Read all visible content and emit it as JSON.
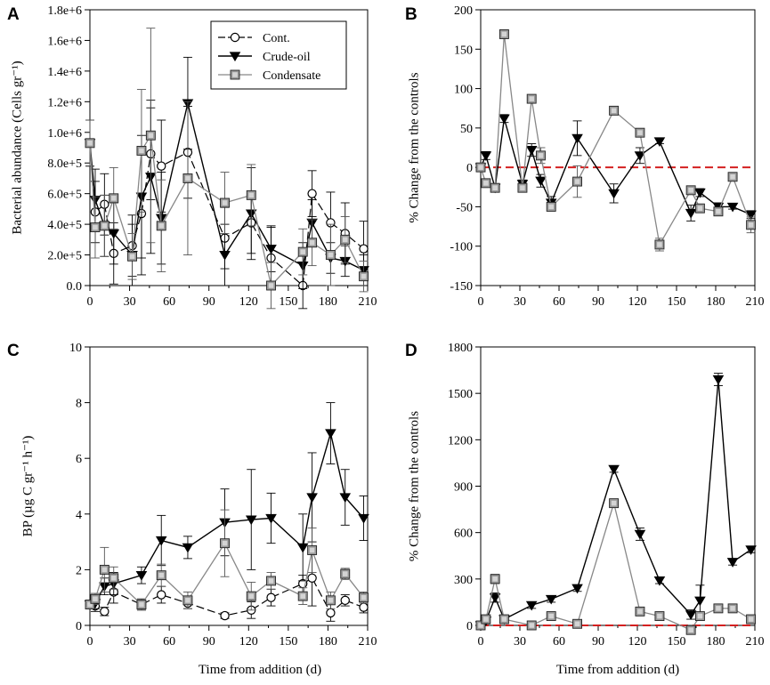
{
  "figure": {
    "xlabel_common": "Time from addition (d)"
  },
  "chart_data": [
    {
      "panel": "A",
      "type": "line",
      "ylabel": "Bacterial abundance (Cells gr⁻¹)",
      "xlim": [
        0,
        210
      ],
      "ylim": [
        0,
        1800000
      ],
      "xticks": [
        0,
        30,
        60,
        90,
        120,
        150,
        180,
        210
      ],
      "xtick_labels": [
        "0",
        "30",
        "60",
        "90",
        "120",
        "150",
        "180",
        "210"
      ],
      "yticks": [
        0,
        200000,
        400000,
        600000,
        800000,
        1000000,
        1200000,
        1400000,
        1600000,
        1800000
      ],
      "ytick_labels": [
        "0.0",
        "2.0e+5",
        "4.0e+5",
        "6.0e+5",
        "8.0e+5",
        "1.0e+6",
        "1.2e+6",
        "1.4e+6",
        "1.6e+6",
        "1.8e+6"
      ],
      "reference_line": null,
      "legend": {
        "position": "top-center",
        "entries": [
          "Cont.",
          "Crude-oil",
          "Condensate"
        ]
      },
      "series": [
        {
          "name": "Cont.",
          "marker": "circle",
          "dash": "long-dash",
          "x": [
            0,
            4,
            11,
            18,
            32,
            39,
            46,
            54,
            74,
            102,
            122,
            137,
            161,
            168,
            182,
            193,
            207
          ],
          "y": [
            930000,
            480000,
            530000,
            210000,
            260000,
            470000,
            860000,
            780000,
            870000,
            310000,
            410000,
            180000,
            0,
            600000,
            410000,
            340000,
            240000
          ],
          "err": [
            150000,
            200000,
            200000,
            200000,
            200000,
            400000,
            300000,
            300000,
            300000,
            200000,
            200000,
            200000,
            150000,
            150000,
            200000,
            200000,
            180000
          ]
        },
        {
          "name": "Crude-oil",
          "marker": "triangle-down",
          "dash": "solid",
          "x": [
            0,
            4,
            11,
            18,
            32,
            39,
            46,
            54,
            74,
            102,
            122,
            137,
            161,
            168,
            182,
            193,
            207
          ],
          "y": [
            930000,
            560000,
            390000,
            340000,
            200000,
            580000,
            710000,
            440000,
            1190000,
            200000,
            470000,
            240000,
            130000,
            410000,
            180000,
            160000,
            100000
          ],
          "err": [
            150000,
            200000,
            200000,
            200000,
            200000,
            400000,
            500000,
            300000,
            300000,
            200000,
            300000,
            150000,
            150000,
            150000,
            100000,
            100000,
            100000
          ]
        },
        {
          "name": "Condensate",
          "marker": "square",
          "dash": "solid",
          "x": [
            0,
            4,
            11,
            18,
            32,
            39,
            46,
            54,
            74,
            102,
            122,
            137,
            161,
            168,
            182,
            193,
            207
          ],
          "y": [
            930000,
            380000,
            390000,
            570000,
            190000,
            880000,
            980000,
            390000,
            700000,
            540000,
            590000,
            0,
            220000,
            280000,
            200000,
            300000,
            60000
          ],
          "err": [
            150000,
            200000,
            200000,
            200000,
            150000,
            400000,
            700000,
            300000,
            500000,
            200000,
            200000,
            150000,
            150000,
            150000,
            200000,
            150000,
            100000
          ]
        }
      ]
    },
    {
      "panel": "B",
      "type": "line",
      "ylabel": "% Change from the controls",
      "xlim": [
        0,
        210
      ],
      "ylim": [
        -150,
        200
      ],
      "xticks": [
        0,
        30,
        60,
        90,
        120,
        150,
        180,
        210
      ],
      "xtick_labels": [
        "0",
        "30",
        "60",
        "90",
        "120",
        "150",
        "180",
        "210"
      ],
      "yticks": [
        -150,
        -100,
        -50,
        0,
        50,
        100,
        150,
        200
      ],
      "ytick_labels": [
        "-150",
        "-100",
        "-50",
        "0",
        "50",
        "100",
        "150",
        "200"
      ],
      "reference_line": 0,
      "legend": null,
      "series": [
        {
          "name": "Crude-oil",
          "marker": "triangle-down",
          "dash": "solid",
          "x": [
            0,
            4,
            11,
            18,
            32,
            39,
            46,
            54,
            74,
            102,
            122,
            137,
            161,
            168,
            182,
            193,
            207
          ],
          "y": [
            0,
            15,
            -26,
            62,
            -21,
            22,
            -17,
            -45,
            37,
            -33,
            15,
            33,
            -58,
            -32,
            -50,
            -50,
            -60
          ],
          "err": [
            3,
            5,
            5,
            5,
            5,
            8,
            8,
            8,
            22,
            12,
            10,
            3,
            10,
            5,
            5,
            3,
            5
          ]
        },
        {
          "name": "Condensate",
          "marker": "square",
          "dash": "solid",
          "x": [
            0,
            4,
            11,
            18,
            32,
            39,
            46,
            54,
            74,
            102,
            122,
            137,
            161,
            168,
            182,
            193,
            207
          ],
          "y": [
            0,
            -20,
            -26,
            169,
            -26,
            87,
            15,
            -50,
            -18,
            72,
            44,
            -98,
            -29,
            -52,
            -56,
            -12,
            -73
          ],
          "err": [
            3,
            5,
            5,
            3,
            5,
            5,
            10,
            5,
            20,
            3,
            5,
            8,
            5,
            5,
            5,
            5,
            10
          ]
        }
      ]
    },
    {
      "panel": "C",
      "type": "line",
      "ylabel": "BP (µg C gr⁻¹ h⁻¹)",
      "xlim": [
        0,
        210
      ],
      "ylim": [
        0,
        10
      ],
      "xticks": [
        0,
        30,
        60,
        90,
        120,
        150,
        180,
        210
      ],
      "xtick_labels": [
        "0",
        "30",
        "60",
        "90",
        "120",
        "150",
        "180",
        "210"
      ],
      "yticks": [
        0,
        2,
        4,
        6,
        8,
        10
      ],
      "ytick_labels": [
        "0",
        "2",
        "4",
        "6",
        "8",
        "10"
      ],
      "reference_line": null,
      "legend": null,
      "series": [
        {
          "name": "Cont.",
          "marker": "circle",
          "dash": "long-dash",
          "x": [
            0,
            4,
            11,
            18,
            39,
            54,
            74,
            102,
            122,
            137,
            161,
            168,
            182,
            193,
            207
          ],
          "y": [
            0.75,
            0.7,
            0.5,
            1.2,
            0.75,
            1.1,
            0.8,
            0.35,
            0.55,
            1.0,
            1.5,
            1.7,
            0.45,
            0.9,
            0.65
          ],
          "err": [
            0.15,
            0.2,
            0.15,
            0.4,
            0.2,
            0.3,
            0.2,
            0.1,
            0.3,
            0.3,
            0.3,
            1.0,
            0.3,
            0.2,
            0.2
          ]
        },
        {
          "name": "Crude-oil",
          "marker": "triangle-down",
          "dash": "solid",
          "x": [
            0,
            4,
            11,
            18,
            39,
            54,
            74,
            102,
            122,
            137,
            161,
            168,
            182,
            193,
            207
          ],
          "y": [
            0.75,
            0.8,
            1.4,
            1.5,
            1.8,
            3.05,
            2.8,
            3.7,
            3.8,
            3.85,
            2.8,
            4.6,
            6.9,
            4.6,
            3.85
          ],
          "err": [
            0.15,
            0.2,
            0.3,
            0.4,
            0.3,
            0.9,
            0.4,
            1.2,
            1.8,
            0.9,
            1.2,
            1.6,
            1.1,
            1.0,
            0.8
          ]
        },
        {
          "name": "Condensate",
          "marker": "square",
          "dash": "solid",
          "x": [
            0,
            4,
            11,
            18,
            39,
            54,
            74,
            102,
            122,
            137,
            161,
            168,
            182,
            193,
            207
          ],
          "y": [
            0.75,
            0.95,
            2.0,
            1.7,
            0.75,
            1.8,
            0.9,
            2.95,
            1.05,
            1.6,
            1.05,
            2.7,
            0.9,
            1.85,
            1.0
          ],
          "err": [
            0.15,
            0.2,
            0.8,
            0.4,
            0.2,
            0.4,
            0.3,
            1.2,
            0.5,
            0.3,
            0.3,
            0.8,
            0.3,
            0.2,
            0.2
          ]
        }
      ]
    },
    {
      "panel": "D",
      "type": "line",
      "ylabel": "% Change from the controls",
      "xlim": [
        0,
        210
      ],
      "ylim": [
        0,
        1800
      ],
      "xticks": [
        0,
        30,
        60,
        90,
        120,
        150,
        180,
        210
      ],
      "xtick_labels": [
        "0",
        "30",
        "60",
        "90",
        "120",
        "150",
        "180",
        "210"
      ],
      "yticks": [
        0,
        300,
        600,
        900,
        1200,
        1500,
        1800
      ],
      "ytick_labels": [
        "0",
        "300",
        "600",
        "900",
        "1200",
        "1500",
        "1800"
      ],
      "reference_line": 0,
      "legend": null,
      "series": [
        {
          "name": "Crude-oil",
          "marker": "triangle-down",
          "dash": "solid",
          "x": [
            0,
            4,
            11,
            18,
            39,
            54,
            74,
            102,
            122,
            137,
            161,
            168,
            182,
            193,
            207
          ],
          "y": [
            0,
            30,
            180,
            40,
            130,
            170,
            240,
            1010,
            590,
            290,
            70,
            160,
            1590,
            410,
            490
          ],
          "err": [
            10,
            20,
            30,
            20,
            20,
            20,
            20,
            20,
            40,
            20,
            30,
            100,
            40,
            20,
            20
          ]
        },
        {
          "name": "Condensate",
          "marker": "square",
          "dash": "solid",
          "x": [
            0,
            4,
            11,
            18,
            39,
            54,
            74,
            102,
            122,
            137,
            161,
            168,
            182,
            193,
            207
          ],
          "y": [
            0,
            40,
            300,
            40,
            0,
            60,
            10,
            790,
            90,
            60,
            -30,
            60,
            110,
            110,
            40
          ],
          "err": [
            10,
            15,
            30,
            15,
            10,
            15,
            10,
            20,
            15,
            10,
            10,
            15,
            20,
            10,
            10
          ]
        }
      ]
    }
  ]
}
